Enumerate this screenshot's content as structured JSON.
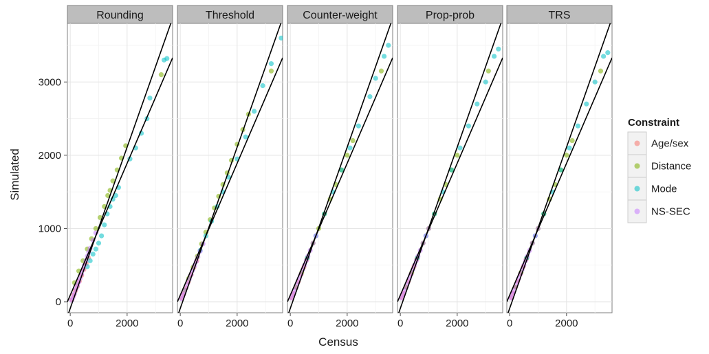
{
  "chart_data": {
    "type": "scatter",
    "facets": [
      "Rounding",
      "Threshold",
      "Counter-weight",
      "Prop-prob",
      "TRS"
    ],
    "xlabel": "Census",
    "ylabel": "Simulated",
    "xlim": [
      -100,
      3600
    ],
    "ylim": [
      -150,
      3800
    ],
    "x_ticks": [
      0,
      2000
    ],
    "y_ticks": [
      0,
      1000,
      2000,
      3000
    ],
    "x_tick_labels": [
      "0",
      "2000"
    ],
    "y_tick_labels": [
      "0",
      "1000",
      "2000",
      "3000"
    ],
    "grid": true,
    "reference_lines": [
      {
        "slope": 1.1,
        "intercept": -90
      },
      {
        "slope": 0.9,
        "intercept": 90
      }
    ],
    "legend": {
      "title": "Constraint",
      "placement": "right",
      "entries": [
        {
          "name": "Age/sex",
          "color": "#F8766D"
        },
        {
          "name": "Distance",
          "color": "#7CAE00"
        },
        {
          "name": "Mode",
          "color": "#00BFC4"
        },
        {
          "name": "NS-SEC",
          "color": "#C77CFF"
        }
      ]
    },
    "series": [
      {
        "facet": "Rounding",
        "points": {
          "Age/sex": [
            [
              60,
              30
            ],
            [
              120,
              90
            ],
            [
              180,
              150
            ],
            [
              250,
              210
            ],
            [
              320,
              280
            ],
            [
              400,
              360
            ],
            [
              480,
              440
            ],
            [
              560,
              520
            ],
            [
              640,
              600
            ]
          ],
          "Distance": [
            [
              150,
              260
            ],
            [
              300,
              420
            ],
            [
              450,
              560
            ],
            [
              600,
              720
            ],
            [
              750,
              860
            ],
            [
              900,
              1000
            ],
            [
              1050,
              1150
            ],
            [
              1200,
              1300
            ],
            [
              1320,
              1450
            ],
            [
              1400,
              1520
            ],
            [
              1500,
              1650
            ],
            [
              1650,
              1800
            ],
            [
              1800,
              1960
            ],
            [
              1950,
              2130
            ],
            [
              3200,
              3100
            ]
          ],
          "Mode": [
            [
              600,
              480
            ],
            [
              700,
              560
            ],
            [
              800,
              650
            ],
            [
              900,
              720
            ],
            [
              1000,
              800
            ],
            [
              1100,
              900
            ],
            [
              1200,
              1050
            ],
            [
              1300,
              1200
            ],
            [
              1400,
              1300
            ],
            [
              1500,
              1400
            ],
            [
              1600,
              1450
            ],
            [
              1700,
              1560
            ],
            [
              2100,
              1950
            ],
            [
              2300,
              2100
            ],
            [
              2500,
              2300
            ],
            [
              2700,
              2500
            ],
            [
              2800,
              2780
            ],
            [
              3300,
              3300
            ],
            [
              3400,
              3320
            ]
          ],
          "NS-SEC": [
            [
              50,
              20
            ],
            [
              100,
              60
            ],
            [
              150,
              110
            ],
            [
              200,
              170
            ],
            [
              250,
              220
            ],
            [
              300,
              270
            ],
            [
              350,
              320
            ],
            [
              400,
              380
            ],
            [
              450,
              440
            ],
            [
              500,
              500
            ],
            [
              550,
              560
            ],
            [
              600,
              620
            ],
            [
              650,
              680
            ],
            [
              700,
              730
            ],
            [
              800,
              840
            ],
            [
              900,
              940
            ]
          ]
        }
      },
      {
        "facet": "Threshold",
        "points": {
          "Age/sex": [
            [
              60,
              50
            ],
            [
              120,
              110
            ],
            [
              200,
              190
            ],
            [
              280,
              270
            ],
            [
              380,
              370
            ],
            [
              480,
              470
            ],
            [
              580,
              560
            ]
          ],
          "Distance": [
            [
              150,
              160
            ],
            [
              300,
              320
            ],
            [
              450,
              470
            ],
            [
              600,
              620
            ],
            [
              750,
              790
            ],
            [
              900,
              950
            ],
            [
              1050,
              1120
            ],
            [
              1200,
              1280
            ],
            [
              1350,
              1440
            ],
            [
              1500,
              1600
            ],
            [
              1650,
              1760
            ],
            [
              1800,
              1930
            ],
            [
              2000,
              2150
            ],
            [
              2200,
              2350
            ],
            [
              2400,
              2560
            ],
            [
              3200,
              3150
            ]
          ],
          "Mode": [
            [
              700,
              700
            ],
            [
              900,
              900
            ],
            [
              1100,
              1100
            ],
            [
              1300,
              1300
            ],
            [
              1500,
              1500
            ],
            [
              1700,
              1700
            ],
            [
              2000,
              1950
            ],
            [
              2300,
              2250
            ],
            [
              2600,
              2600
            ],
            [
              2900,
              2950
            ],
            [
              3200,
              3250
            ],
            [
              3550,
              3600
            ]
          ],
          "NS-SEC": [
            [
              50,
              40
            ],
            [
              100,
              90
            ],
            [
              150,
              140
            ],
            [
              200,
              190
            ],
            [
              260,
              250
            ],
            [
              320,
              310
            ],
            [
              380,
              370
            ],
            [
              440,
              430
            ],
            [
              500,
              490
            ],
            [
              560,
              550
            ],
            [
              620,
              610
            ],
            [
              700,
              690
            ],
            [
              800,
              790
            ]
          ]
        }
      },
      {
        "facet": "Counter-weight",
        "points": {
          "Age/sex": [
            [
              60,
              55
            ],
            [
              120,
              115
            ],
            [
              200,
              195
            ],
            [
              280,
              275
            ],
            [
              380,
              375
            ],
            [
              480,
              475
            ],
            [
              580,
              575
            ]
          ],
          "Distance": [
            [
              200,
              200
            ],
            [
              400,
              400
            ],
            [
              600,
              600
            ],
            [
              800,
              800
            ],
            [
              1000,
              1000
            ],
            [
              1200,
              1200
            ],
            [
              1400,
              1400
            ],
            [
              1600,
              1600
            ],
            [
              1800,
              1800
            ],
            [
              2000,
              2000
            ],
            [
              2200,
              2200
            ],
            [
              3200,
              3150
            ]
          ],
          "Mode": [
            [
              600,
              600
            ],
            [
              900,
              900
            ],
            [
              1200,
              1200
            ],
            [
              1500,
              1500
            ],
            [
              1800,
              1800
            ],
            [
              2100,
              2100
            ],
            [
              2400,
              2400
            ],
            [
              2800,
              2800
            ],
            [
              3000,
              3050
            ],
            [
              3300,
              3350
            ],
            [
              3450,
              3500
            ]
          ],
          "NS-SEC": [
            [
              50,
              50
            ],
            [
              100,
              100
            ],
            [
              150,
              150
            ],
            [
              200,
              200
            ],
            [
              260,
              260
            ],
            [
              320,
              320
            ],
            [
              380,
              380
            ],
            [
              440,
              440
            ],
            [
              500,
              500
            ],
            [
              560,
              560
            ],
            [
              620,
              620
            ],
            [
              700,
              700
            ],
            [
              800,
              800
            ],
            [
              900,
              900
            ]
          ]
        }
      },
      {
        "facet": "Prop-prob",
        "points": {
          "Age/sex": [
            [
              60,
              60
            ],
            [
              120,
              120
            ],
            [
              200,
              200
            ],
            [
              280,
              280
            ],
            [
              380,
              380
            ],
            [
              480,
              480
            ],
            [
              580,
              580
            ]
          ],
          "Distance": [
            [
              200,
              200
            ],
            [
              400,
              400
            ],
            [
              600,
              600
            ],
            [
              800,
              800
            ],
            [
              1000,
              1000
            ],
            [
              1200,
              1200
            ],
            [
              1400,
              1400
            ],
            [
              1600,
              1600
            ],
            [
              1800,
              1800
            ],
            [
              2000,
              2000
            ],
            [
              3100,
              3150
            ]
          ],
          "Mode": [
            [
              600,
              600
            ],
            [
              900,
              900
            ],
            [
              1200,
              1200
            ],
            [
              1500,
              1500
            ],
            [
              1800,
              1800
            ],
            [
              2100,
              2100
            ],
            [
              2400,
              2400
            ],
            [
              2700,
              2700
            ],
            [
              3000,
              3000
            ],
            [
              3300,
              3350
            ],
            [
              3450,
              3450
            ]
          ],
          "NS-SEC": [
            [
              50,
              50
            ],
            [
              100,
              100
            ],
            [
              150,
              150
            ],
            [
              200,
              200
            ],
            [
              260,
              260
            ],
            [
              320,
              320
            ],
            [
              380,
              380
            ],
            [
              440,
              440
            ],
            [
              500,
              500
            ],
            [
              560,
              560
            ],
            [
              620,
              620
            ],
            [
              700,
              700
            ],
            [
              800,
              800
            ],
            [
              900,
              900
            ],
            [
              1000,
              1000
            ]
          ]
        }
      },
      {
        "facet": "TRS",
        "points": {
          "Age/sex": [
            [
              60,
              60
            ],
            [
              120,
              120
            ],
            [
              200,
              200
            ],
            [
              280,
              280
            ],
            [
              380,
              380
            ],
            [
              480,
              480
            ],
            [
              580,
              580
            ]
          ],
          "Distance": [
            [
              200,
              200
            ],
            [
              400,
              400
            ],
            [
              600,
              600
            ],
            [
              800,
              800
            ],
            [
              1000,
              1000
            ],
            [
              1200,
              1200
            ],
            [
              1400,
              1400
            ],
            [
              1600,
              1600
            ],
            [
              1800,
              1800
            ],
            [
              2000,
              2000
            ],
            [
              2200,
              2200
            ],
            [
              3200,
              3150
            ]
          ],
          "Mode": [
            [
              600,
              600
            ],
            [
              900,
              900
            ],
            [
              1200,
              1200
            ],
            [
              1500,
              1500
            ],
            [
              1800,
              1800
            ],
            [
              2100,
              2100
            ],
            [
              2400,
              2400
            ],
            [
              2700,
              2700
            ],
            [
              3000,
              3000
            ],
            [
              3300,
              3350
            ],
            [
              3450,
              3400
            ]
          ],
          "NS-SEC": [
            [
              50,
              50
            ],
            [
              100,
              100
            ],
            [
              150,
              150
            ],
            [
              200,
              200
            ],
            [
              260,
              260
            ],
            [
              320,
              320
            ],
            [
              380,
              380
            ],
            [
              440,
              440
            ],
            [
              500,
              500
            ],
            [
              560,
              560
            ],
            [
              620,
              620
            ],
            [
              700,
              700
            ],
            [
              800,
              800
            ],
            [
              900,
              900
            ],
            [
              1000,
              1000
            ]
          ]
        }
      }
    ]
  }
}
